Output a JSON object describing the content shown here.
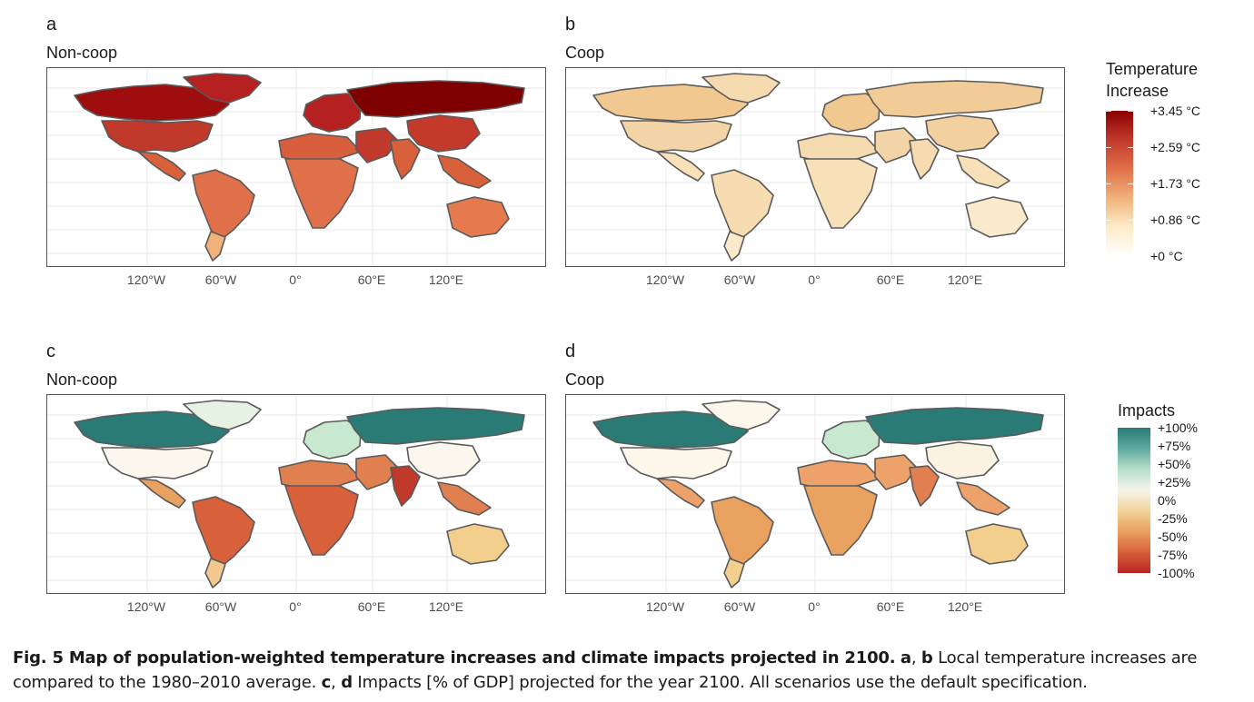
{
  "panels": [
    {
      "letter": "a",
      "title": "Non-coop",
      "scheme": "temp_high"
    },
    {
      "letter": "b",
      "title": "Coop",
      "scheme": "temp_low"
    },
    {
      "letter": "c",
      "title": "Non-coop",
      "scheme": "imp_noncoop"
    },
    {
      "letter": "d",
      "title": "Coop",
      "scheme": "imp_coop"
    }
  ],
  "x_ticks": [
    "120°W",
    "60°W",
    "0°",
    "60°E",
    "120°E"
  ],
  "legend_temperature": {
    "title_line1": "Temperature",
    "title_line2": "Increase",
    "labels": [
      "+3.45 °C",
      "+2.59 °C",
      "+1.73 °C",
      "+0.86 °C",
      "+0 °C"
    ],
    "colors": [
      "#8b0000",
      "#c0392b",
      "#e0704a",
      "#f0b27a",
      "#fdebc8",
      "#ffffff"
    ]
  },
  "legend_impacts": {
    "title": "Impacts",
    "labels": [
      "+100%",
      "+75%",
      "+50%",
      "+25%",
      "0%",
      "-25%",
      "-50%",
      "-75%",
      "-100%"
    ],
    "colors": [
      "#2a7a76",
      "#5fa8a0",
      "#b6dfc8",
      "#f6f4ec",
      "#f3d29a",
      "#e9a160",
      "#d8603a",
      "#b72323"
    ]
  },
  "caption": {
    "fig_label": "Fig. 5 Map of population-weighted temperature increases and climate impacts projected in 2100.",
    "a": "a",
    "sep1": ", ",
    "b": "b",
    "text1": " Local temperature increases are compared to the 1980–2010 average. ",
    "c": "c",
    "sep2": ", ",
    "d": "d",
    "text2": " Impacts [% of GDP] projected for the year 2100. All scenarios use the default specification."
  },
  "colors": {
    "temp_high": {
      "north_america": "#8b0000",
      "canada": "#9e0e0e",
      "usa": "#c0392b",
      "mexico": "#d8603a",
      "south_america": "#e0704a",
      "s_cone": "#f0b27a",
      "europe": "#b52020",
      "russia": "#7f0000",
      "africa": "#e0704a",
      "n_africa": "#d85f3d",
      "middle_east": "#c0392b",
      "india": "#d8603a",
      "china": "#c43a2a",
      "se_asia": "#d8603a",
      "australia": "#e57a4e",
      "greenland": "#b52020"
    },
    "temp_low": {
      "north_america": "#f3d1a0",
      "canada": "#f0c890",
      "usa": "#f3d4a6",
      "mexico": "#f8e0b8",
      "south_america": "#f6dcb0",
      "s_cone": "#fae9cb",
      "europe": "#f0c890",
      "russia": "#f1cc97",
      "africa": "#f8e0b8",
      "n_africa": "#f6dab0",
      "middle_east": "#f3d4a6",
      "india": "#f6dab0",
      "china": "#f3d0a0",
      "se_asia": "#f8e0b8",
      "australia": "#fae9cb",
      "greenland": "#f6dab0"
    },
    "imp_noncoop": {
      "north_america": "#fbf7ee",
      "canada": "#2a7a76",
      "usa": "#fbf7ee",
      "mexico": "#e9a160",
      "south_america": "#d8603a",
      "s_cone": "#f0c890",
      "europe": "#c8e8cf",
      "russia": "#2a7a76",
      "africa": "#d8603a",
      "n_africa": "#e08050",
      "middle_east": "#e08050",
      "india": "#c0392b",
      "china": "#fbf7ee",
      "se_asia": "#e08050",
      "australia": "#f3cf8e",
      "greenland": "#e6f3e4"
    },
    "imp_coop": {
      "north_america": "#fdf6ea",
      "canada": "#2a7a76",
      "usa": "#fdf6ea",
      "mexico": "#eda26b",
      "south_america": "#e9a160",
      "s_cone": "#f3cf8e",
      "europe": "#c8e8cf",
      "russia": "#2a7a76",
      "africa": "#e9a160",
      "n_africa": "#eda26b",
      "middle_east": "#eda26b",
      "india": "#e08050",
      "china": "#fbf2e2",
      "se_asia": "#eda26b",
      "australia": "#f3cf8e",
      "greenland": "#fdf6ea"
    }
  }
}
